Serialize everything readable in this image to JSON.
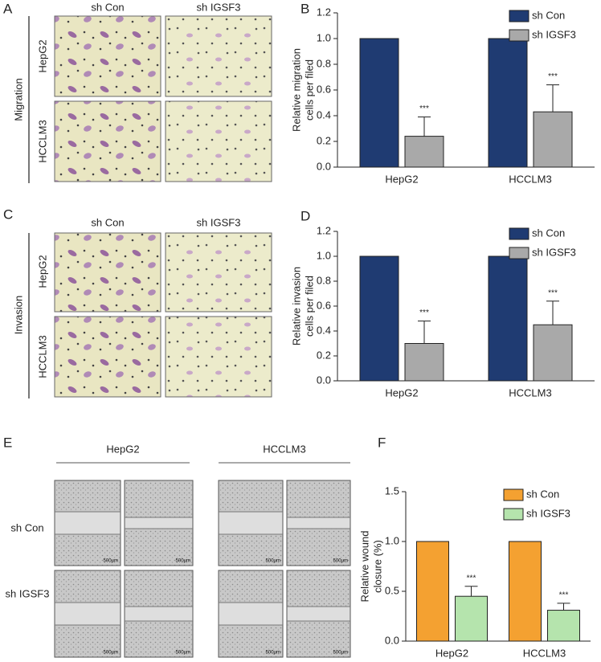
{
  "figure": {
    "letters": [
      "A",
      "B",
      "C",
      "D",
      "E",
      "F"
    ],
    "migration": {
      "group": "Migration",
      "columns": [
        "sh Con",
        "sh IGSF3"
      ],
      "rows": [
        "HepG2",
        "HCCLM3"
      ]
    },
    "invasion": {
      "group": "Invasion",
      "columns": [
        "sh Con",
        "sh IGSF3"
      ],
      "rows": [
        "HepG2",
        "HCCLM3"
      ]
    },
    "wound": {
      "columns": [
        "HepG2",
        "HCCLM3"
      ],
      "rows": [
        "sh Con",
        "sh IGSF3"
      ],
      "scale": "500μm"
    }
  },
  "chart_data": [
    {
      "type": "bar",
      "ylabel": [
        "Relative migration",
        "cells per filed"
      ],
      "categories": [
        "HepG2",
        "HCCLM3"
      ],
      "series": [
        {
          "name": "sh Con",
          "color": "#1f3b72",
          "values": [
            1,
            1
          ]
        },
        {
          "name": "sh IGSF3",
          "color": "#a9a9a9",
          "values": [
            0.24,
            0.43
          ],
          "errors": [
            0.15,
            0.21
          ],
          "significance": [
            "***",
            "***"
          ]
        }
      ],
      "ylim": [
        0,
        1.2
      ],
      "yticks": [
        {
          "value": 0,
          "label": "0.0"
        },
        0.2,
        0.4,
        0.6,
        0.8,
        {
          "value": 1,
          "label": "1.0"
        },
        1.2
      ],
      "legend": "top-right"
    },
    {
      "type": "bar",
      "ylabel": [
        "Relative invasion",
        "cells per filed"
      ],
      "categories": [
        "HepG2",
        "HCCLM3"
      ],
      "series": [
        {
          "name": "sh Con",
          "color": "#1f3b72",
          "values": [
            1,
            1
          ]
        },
        {
          "name": "sh IGSF3",
          "color": "#a9a9a9",
          "values": [
            0.3,
            0.45
          ],
          "errors": [
            0.18,
            0.19
          ],
          "significance": [
            "***",
            "***"
          ]
        }
      ],
      "ylim": [
        0,
        1.2
      ],
      "yticks": [
        {
          "value": 0,
          "label": "0.0"
        },
        0.2,
        0.4,
        0.6,
        0.8,
        {
          "value": 1,
          "label": "1.0"
        },
        1.2
      ],
      "legend": "top-right"
    },
    {
      "type": "bar",
      "ylabel": [
        "Relative wound",
        "closure (%)"
      ],
      "categories": [
        "HepG2",
        "HCCLM3"
      ],
      "series": [
        {
          "name": "sh Con",
          "color": "#f4a131",
          "values": [
            1,
            1
          ]
        },
        {
          "name": "sh IGSF3",
          "color": "#b5e4ad",
          "values": [
            0.45,
            0.31
          ],
          "errors": [
            0.1,
            0.07
          ],
          "significance": [
            "***",
            "***"
          ]
        }
      ],
      "ylim": [
        0,
        1.5
      ],
      "yticks": [
        {
          "value": 0,
          "label": "0.0"
        },
        0.5,
        {
          "value": 1,
          "label": "1.0"
        },
        1.5
      ],
      "legend": "top-right"
    }
  ]
}
